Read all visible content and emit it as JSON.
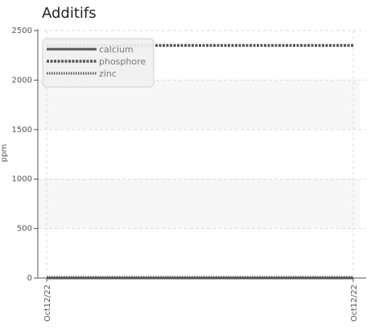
{
  "chart_data": {
    "type": "line",
    "title": "Additifs",
    "ylabel": "ppm",
    "xlabel": "",
    "ylim": [
      0,
      2500
    ],
    "yticks": [
      0,
      500,
      1000,
      1500,
      2000,
      2500
    ],
    "x": [
      "Oct12/22",
      "Oct12/22"
    ],
    "grid": true,
    "legend_position": "top-left",
    "series": [
      {
        "name": "calcium",
        "values": [
          0,
          0
        ],
        "color": "#555555",
        "style": "solid"
      },
      {
        "name": "phosphore",
        "values": [
          2350,
          2350
        ],
        "color": "#555555",
        "style": "dashed"
      },
      {
        "name": "zinc",
        "values": [
          0,
          0
        ],
        "color": "#555555",
        "style": "dotted"
      }
    ]
  }
}
